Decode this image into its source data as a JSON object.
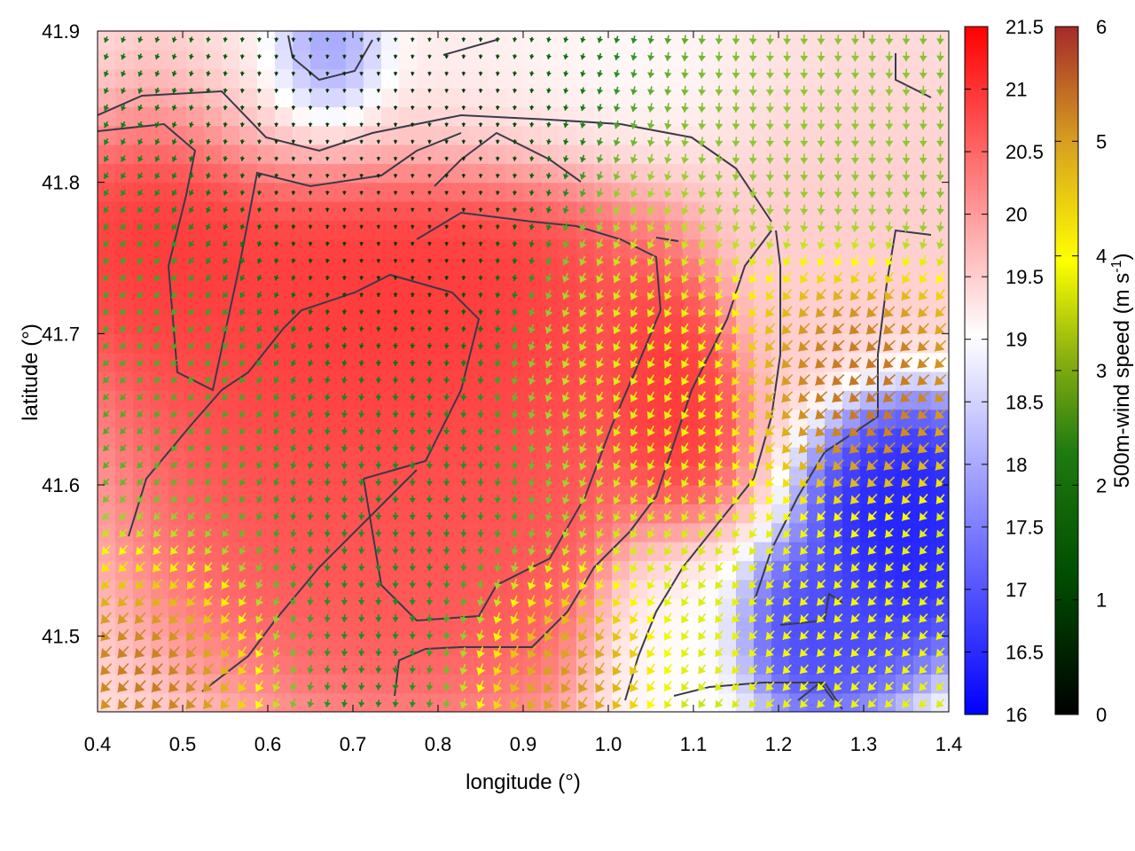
{
  "chart_data": {
    "type": "heatmap",
    "title": "",
    "xlabel": "longitude (°)",
    "ylabel": "latitude (°)",
    "xlim": [
      0.4,
      1.4
    ],
    "ylim": [
      41.45,
      41.9
    ],
    "xticks": [
      "0.4",
      "0.5",
      "0.6",
      "0.7",
      "0.8",
      "0.9",
      "1.0",
      "1.1",
      "1.2",
      "1.3",
      "1.4"
    ],
    "yticks": [
      "41.5",
      "41.6",
      "41.7",
      "41.8",
      "41.9"
    ],
    "xtick_values": [
      0.4,
      0.5,
      0.6,
      0.7,
      0.8,
      0.9,
      1.0,
      1.1,
      1.2,
      1.3,
      1.4
    ],
    "ytick_values": [
      41.5,
      41.6,
      41.7,
      41.8,
      41.9
    ],
    "grid": false,
    "colorbar_temperature": {
      "range": [
        16,
        21.5
      ],
      "ticks": [
        "16",
        "16.5",
        "17",
        "17.5",
        "18",
        "18.5",
        "19",
        "19.5",
        "20",
        "20.5",
        "21",
        "21.5"
      ],
      "colors": [
        "#0000ff",
        "#ffffff",
        "#ff0000"
      ]
    },
    "colorbar_wind": {
      "label": "500m-wind speed (m s-1)",
      "label_main": "500m-wind speed (m s",
      "label_sup": "-1",
      "label_end": ")",
      "range": [
        0,
        6
      ],
      "ticks": [
        "0",
        "1",
        "2",
        "3",
        "4",
        "5",
        "6"
      ],
      "colors": [
        "#000000",
        "#006400",
        "#228b22",
        "#9acd32",
        "#ffff00",
        "#daa520",
        "#a52a2a"
      ]
    },
    "field_regions": [
      {
        "name": "north-white-band",
        "lon": [
          0.4,
          1.15
        ],
        "lat": [
          41.82,
          41.9
        ],
        "value": 19.0
      },
      {
        "name": "northwest-red",
        "lon": [
          0.4,
          0.55
        ],
        "lat": [
          41.72,
          41.85
        ],
        "value": 21.0
      },
      {
        "name": "central-red",
        "lon": [
          0.55,
          0.95
        ],
        "lat": [
          41.6,
          41.82
        ],
        "value": 21.0
      },
      {
        "name": "south-central-red",
        "lon": [
          0.6,
          0.95
        ],
        "lat": [
          41.5,
          41.65
        ],
        "value": 20.7
      },
      {
        "name": "river-valley-red",
        "lon": [
          1.05,
          1.1
        ],
        "lat": [
          41.6,
          41.72
        ],
        "value": 21.0
      },
      {
        "name": "east-pink",
        "lon": [
          1.15,
          1.4
        ],
        "lat": [
          41.72,
          41.88
        ],
        "value": 19.5
      },
      {
        "name": "southeast-blue",
        "lon": [
          1.3,
          1.4
        ],
        "lat": [
          41.53,
          41.62
        ],
        "value": 16.3
      },
      {
        "name": "southeast-blue-2",
        "lon": [
          1.2,
          1.3
        ],
        "lat": [
          41.48,
          41.53
        ],
        "value": 16.8
      },
      {
        "name": "north-blue",
        "lon": [
          0.65,
          0.7
        ],
        "lat": [
          41.86,
          41.9
        ],
        "value": 17.0
      },
      {
        "name": "south-white",
        "lon": [
          1.03,
          1.12
        ],
        "lat": [
          41.45,
          41.55
        ],
        "value": 19.0
      }
    ],
    "wind_regions": [
      {
        "name": "central-calm",
        "lon": [
          0.6,
          0.85
        ],
        "lat": [
          41.72,
          41.88
        ],
        "speed": 0.4,
        "dir_deg": 180
      },
      {
        "name": "west-moderate",
        "lon": [
          0.4,
          0.6
        ],
        "lat": [
          41.55,
          41.75
        ],
        "speed": 2.5,
        "dir_deg": 225
      },
      {
        "name": "southwest-strong",
        "lon": [
          0.4,
          0.55
        ],
        "lat": [
          41.45,
          41.55
        ],
        "speed": 5.8,
        "dir_deg": 225
      },
      {
        "name": "south-central",
        "lon": [
          0.6,
          0.9
        ],
        "lat": [
          41.5,
          41.65
        ],
        "speed": 2.0,
        "dir_deg": 180
      },
      {
        "name": "river-yellow",
        "lon": [
          0.95,
          1.15
        ],
        "lat": [
          41.55,
          41.75
        ],
        "speed": 3.8,
        "dir_deg": 210
      },
      {
        "name": "south-brown",
        "lon": [
          0.88,
          1.0
        ],
        "lat": [
          41.45,
          41.53
        ],
        "speed": 5.5,
        "dir_deg": 215
      },
      {
        "name": "east-brown",
        "lon": [
          1.18,
          1.38
        ],
        "lat": [
          41.62,
          41.72
        ],
        "speed": 5.6,
        "dir_deg": 230
      },
      {
        "name": "northeast-green",
        "lon": [
          1.15,
          1.4
        ],
        "lat": [
          41.78,
          41.9
        ],
        "speed": 3.0,
        "dir_deg": 180
      },
      {
        "name": "southeast-yellow",
        "lon": [
          1.15,
          1.4
        ],
        "lat": [
          41.45,
          41.55
        ],
        "speed": 4.0,
        "dir_deg": 225
      }
    ]
  }
}
